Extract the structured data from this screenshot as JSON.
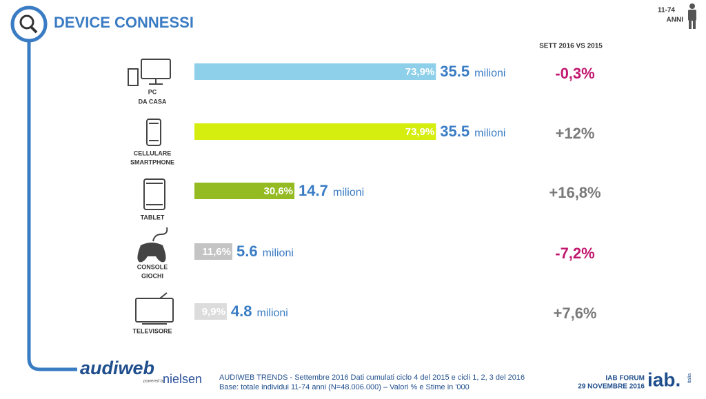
{
  "chart_data": {
    "type": "hbar",
    "title": "DEVICE CONNESSI",
    "age_badge": [
      "11-74",
      "ANNI"
    ],
    "column_header": "SETT 2016  VS 2015",
    "categories": [
      [
        "PC",
        "DA CASA"
      ],
      [
        "CELLULARE",
        "SMARTPHONE"
      ],
      [
        "TABLET"
      ],
      [
        "CONSOLE",
        "GIOCHI"
      ],
      [
        "TELEVISORE"
      ]
    ],
    "values": [
      73.9,
      73.9,
      30.6,
      11.6,
      9.9
    ],
    "value_labels": [
      "73,9%",
      "73,9%",
      "30,6%",
      "11,6%",
      "9,9%"
    ],
    "colors": [
      "#8ecfe9",
      "#d6ee0f",
      "#95bb22",
      "#c4c4c4",
      "#dcdcdc"
    ],
    "xlim": [
      0,
      100
    ],
    "audience": [
      35.5,
      35.5,
      14.7,
      5.6,
      4.8
    ],
    "audience_unit": "milioni",
    "change_labels": [
      "-0,3%",
      "+12%",
      "+16,8%",
      "-7,2%",
      "+7,6%"
    ],
    "change": [
      -0.3,
      12,
      16.8,
      -7.2,
      7.6
    ],
    "change_colors": [
      "#c2176e",
      "#7a7a7a",
      "#7a7a7a",
      "#c2176e",
      "#7a7a7a"
    ]
  },
  "footer": {
    "source_line_1": "AUDIWEB TRENDS - Settembre 2016  Dati cumulati ciclo 4 del 2015 e cicli 1, 2, 3 del 2016",
    "source_line_2": "Base: totale individui 11-74 anni (N=48.006.000) – Valori % e Stime in '000",
    "event": "IAB FORUM",
    "date": "29 NOVEMBRE 2016",
    "logo_audiweb": "audiweb",
    "logo_powered": "powered by",
    "logo_nielsen": "nielsen",
    "logo_iab": "iab.",
    "logo_italia": "italia"
  }
}
